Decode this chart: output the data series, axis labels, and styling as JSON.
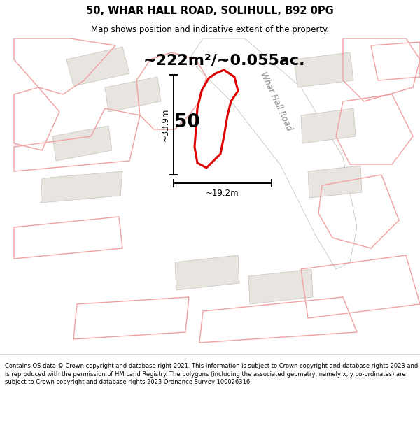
{
  "title": "50, WHAR HALL ROAD, SOLIHULL, B92 0PG",
  "subtitle": "Map shows position and indicative extent of the property.",
  "area_text": "~222m²/~0.055ac.",
  "label_50": "50",
  "dim_width": "~19.2m",
  "dim_height": "~33.9m",
  "road_label": "Whar Hall Road",
  "footer": "Contains OS data © Crown copyright and database right 2021. This information is subject to Crown copyright and database rights 2023 and is reproduced with the permission of HM Land Registry. The polygons (including the associated geometry, namely x, y co-ordinates) are subject to Crown copyright and database rights 2023 Ordnance Survey 100026316.",
  "bg_color": "#f5f3f0",
  "main_poly_color": "#dd0000",
  "other_poly_stroke": "#f0a0a0",
  "building_fill": "#e8e4e0",
  "building_stroke": "#c8c0b8",
  "road_fill": "#ffffff",
  "road_stroke": "#c0b8b0",
  "map_bg": "#f0ece8"
}
